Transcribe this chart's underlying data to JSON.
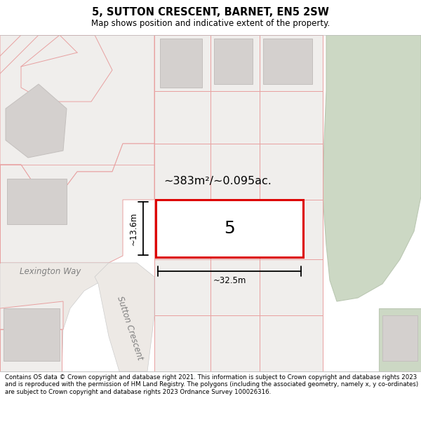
{
  "title": "5, SUTTON CRESCENT, BARNET, EN5 2SW",
  "subtitle": "Map shows position and indicative extent of the property.",
  "footer": "Contains OS data © Crown copyright and database right 2021. This information is subject to Crown copyright and database rights 2023 and is reproduced with the permission of HM Land Registry. The polygons (including the associated geometry, namely x, y co-ordinates) are subject to Crown copyright and database rights 2023 Ordnance Survey 100026316.",
  "map_bg": "#f5f3f0",
  "parcel_fill": "#f0eeec",
  "parcel_edge": "#e8a0a0",
  "building_fill": "#d4d0ce",
  "building_edge": "#c4c0be",
  "highlight_fill": "#ffffff",
  "highlight_edge": "#dd0000",
  "green_fill": "#ccd8c4",
  "green_edge": "#bbc8b3",
  "dim_color": "#000000",
  "area_text": "~383m²/~0.095ac.",
  "number_text": "5",
  "width_label": "~32.5m",
  "height_label": "~13.6m",
  "street1": "Lexington Way",
  "street2": "Sutton Crescent"
}
